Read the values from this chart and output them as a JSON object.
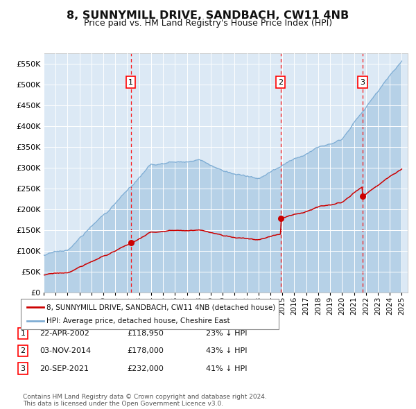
{
  "title": "8, SUNNYMILL DRIVE, SANDBACH, CW11 4NB",
  "subtitle": "Price paid vs. HM Land Registry's House Price Index (HPI)",
  "background_color": "#ffffff",
  "plot_bg_color": "#dce9f5",
  "grid_color": "#ffffff",
  "ylim": [
    0,
    575000
  ],
  "purchase_color": "#cc0000",
  "hpi_color": "#7eadd4",
  "hpi_fill_alpha": 0.4,
  "red_line_label": "8, SUNNYMILL DRIVE, SANDBACH, CW11 4NB (detached house)",
  "blue_line_label": "HPI: Average price, detached house, Cheshire East",
  "footer_text": "Contains HM Land Registry data © Crown copyright and database right 2024.\nThis data is licensed under the Open Government Licence v3.0.",
  "purchase_dates": [
    2002.3,
    2014.84,
    2021.72
  ],
  "purchase_prices": [
    118950,
    178000,
    232000
  ],
  "purchase_labels": [
    "1",
    "2",
    "3"
  ],
  "table_rows": [
    {
      "num": "1",
      "date": "22-APR-2002",
      "price": "£118,950",
      "pct": "23% ↓ HPI"
    },
    {
      "num": "2",
      "date": "03-NOV-2014",
      "price": "£178,000",
      "pct": "43% ↓ HPI"
    },
    {
      "num": "3",
      "date": "20-SEP-2021",
      "price": "£232,000",
      "pct": "41% ↓ HPI"
    }
  ]
}
